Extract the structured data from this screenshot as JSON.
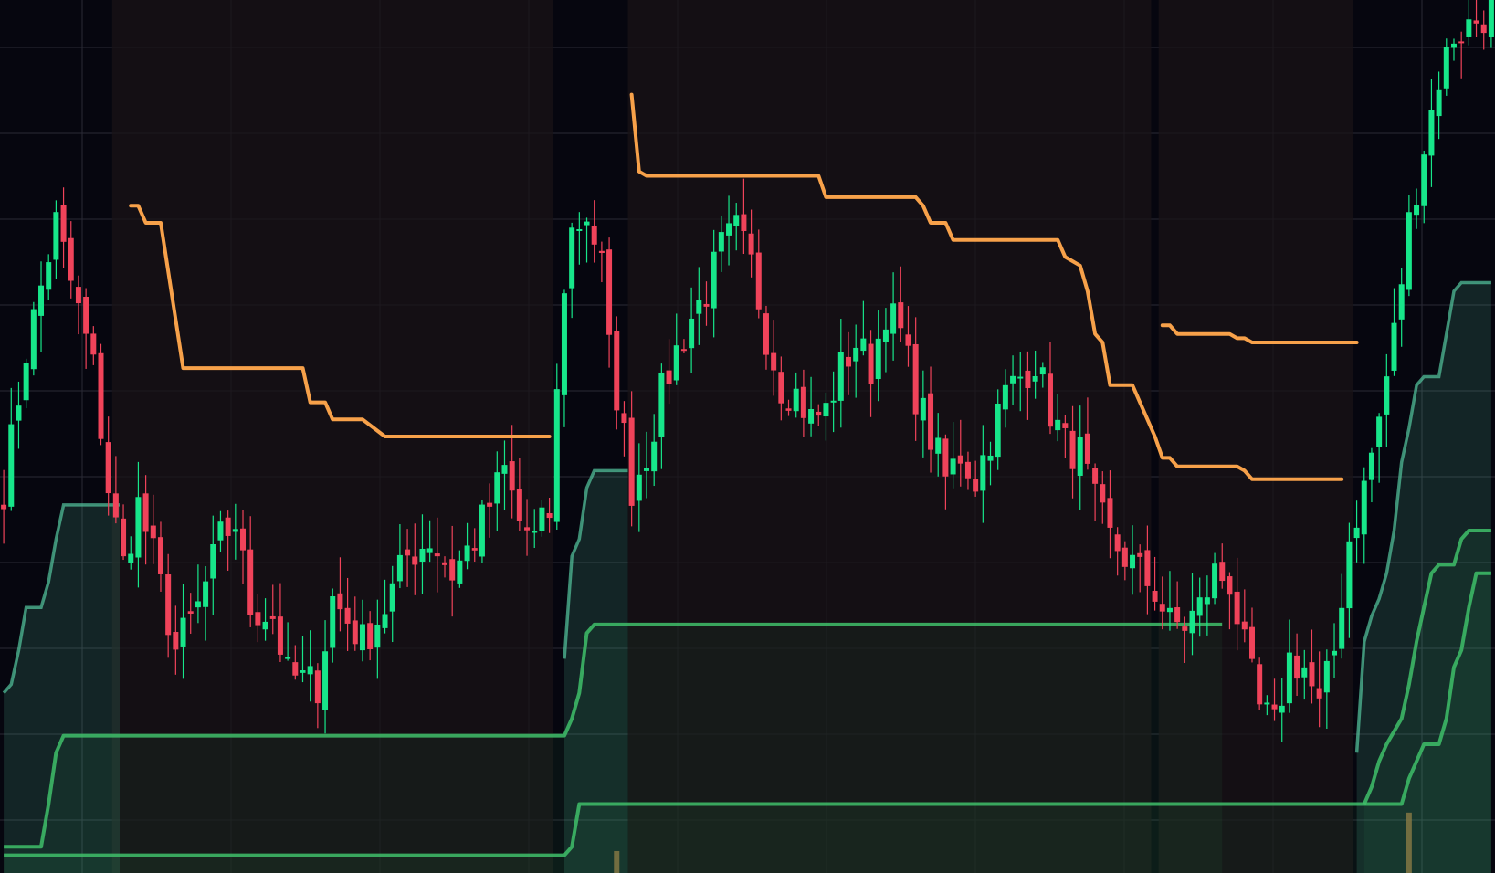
{
  "chart_data": {
    "type": "candlestick",
    "ylim": [
      0,
      100
    ],
    "x_count": 200,
    "grid": true,
    "colors": {
      "background": "#06060f",
      "grid": "#2a2a36",
      "up_candle": "#17e68a",
      "down_candle": "#f0435a",
      "resistance_line": "#f7a14a",
      "support_line": "#3fbf6a",
      "support_band": "#55c8a0",
      "zone_shade": "#1a1317",
      "volume_tick": "#8a7a45"
    },
    "candle_waypoints": [
      [
        0,
        44
      ],
      [
        3,
        60
      ],
      [
        7,
        75
      ],
      [
        9,
        68
      ],
      [
        12,
        58
      ],
      [
        14,
        44
      ],
      [
        16,
        35
      ],
      [
        18,
        42
      ],
      [
        20,
        36
      ],
      [
        23,
        25
      ],
      [
        26,
        30
      ],
      [
        29,
        38
      ],
      [
        31,
        40
      ],
      [
        33,
        30
      ],
      [
        36,
        29
      ],
      [
        38,
        22
      ],
      [
        42,
        21
      ],
      [
        44,
        31
      ],
      [
        48,
        26
      ],
      [
        51,
        30
      ],
      [
        54,
        36
      ],
      [
        57,
        38
      ],
      [
        60,
        34
      ],
      [
        63,
        38
      ],
      [
        65,
        42
      ],
      [
        67,
        46
      ],
      [
        69,
        40
      ],
      [
        71,
        38
      ],
      [
        73,
        41
      ],
      [
        75,
        68
      ],
      [
        76,
        74
      ],
      [
        78,
        76
      ],
      [
        80,
        70
      ],
      [
        81,
        60
      ],
      [
        83,
        50
      ],
      [
        84,
        44
      ],
      [
        86,
        48
      ],
      [
        88,
        55
      ],
      [
        90,
        60
      ],
      [
        92,
        64
      ],
      [
        94,
        67
      ],
      [
        96,
        72
      ],
      [
        98,
        74
      ],
      [
        100,
        70
      ],
      [
        102,
        62
      ],
      [
        104,
        56
      ],
      [
        106,
        55
      ],
      [
        108,
        52
      ],
      [
        110,
        53
      ],
      [
        112,
        58
      ],
      [
        114,
        61
      ],
      [
        116,
        58
      ],
      [
        118,
        65
      ],
      [
        120,
        62
      ],
      [
        122,
        55
      ],
      [
        124,
        50
      ],
      [
        126,
        45
      ],
      [
        128,
        48
      ],
      [
        130,
        45
      ],
      [
        132,
        50
      ],
      [
        134,
        55
      ],
      [
        136,
        57
      ],
      [
        138,
        59
      ],
      [
        140,
        53
      ],
      [
        142,
        49
      ],
      [
        144,
        48
      ],
      [
        146,
        42
      ],
      [
        148,
        38
      ],
      [
        150,
        36
      ],
      [
        152,
        34
      ],
      [
        154,
        32
      ],
      [
        156,
        28
      ],
      [
        158,
        28
      ],
      [
        160,
        30
      ],
      [
        162,
        34
      ],
      [
        164,
        33
      ],
      [
        166,
        25
      ],
      [
        168,
        18
      ],
      [
        170,
        16
      ],
      [
        172,
        24
      ],
      [
        174,
        23
      ],
      [
        176,
        18
      ],
      [
        178,
        25
      ],
      [
        180,
        38
      ],
      [
        182,
        44
      ],
      [
        184,
        52
      ],
      [
        186,
        62
      ],
      [
        188,
        75
      ],
      [
        190,
        84
      ],
      [
        192,
        92
      ],
      [
        194,
        97
      ],
      [
        196,
        98
      ],
      [
        199,
        100
      ]
    ],
    "resistance_segments": [
      [
        [
          17,
          77
        ],
        [
          18,
          77
        ],
        [
          19,
          75
        ],
        [
          21,
          75
        ],
        [
          24,
          58
        ],
        [
          40,
          58
        ],
        [
          41,
          54
        ],
        [
          43,
          54
        ],
        [
          44,
          52
        ],
        [
          48,
          52
        ],
        [
          51,
          50
        ],
        [
          73,
          50
        ]
      ],
      [
        [
          84,
          90
        ],
        [
          85,
          81
        ],
        [
          86,
          80.5
        ],
        [
          109,
          80.5
        ],
        [
          110,
          78
        ],
        [
          122,
          78
        ],
        [
          123,
          77
        ],
        [
          124,
          75
        ],
        [
          126,
          75
        ],
        [
          127,
          73
        ],
        [
          141,
          73
        ],
        [
          142,
          71
        ],
        [
          144,
          70
        ],
        [
          145,
          67
        ],
        [
          146,
          62
        ],
        [
          147,
          61
        ],
        [
          148,
          56
        ],
        [
          151,
          56
        ],
        [
          152,
          54
        ],
        [
          154,
          50
        ],
        [
          155,
          47.5
        ],
        [
          156,
          47.5
        ],
        [
          157,
          46.5
        ],
        [
          165,
          46.5
        ],
        [
          166,
          46
        ],
        [
          167,
          45
        ],
        [
          168,
          45
        ],
        [
          169,
          45
        ],
        [
          179,
          45
        ]
      ],
      [
        [
          155,
          63
        ],
        [
          156,
          63
        ],
        [
          157,
          62
        ],
        [
          164,
          62
        ],
        [
          165,
          61.5
        ],
        [
          166,
          61.5
        ],
        [
          167,
          61
        ],
        [
          181,
          61
        ]
      ]
    ],
    "support_band_segments": [
      [
        [
          0,
          20
        ],
        [
          1,
          21
        ],
        [
          2,
          25
        ],
        [
          3,
          30
        ],
        [
          5,
          30
        ],
        [
          6,
          33
        ],
        [
          7,
          38
        ],
        [
          8,
          42
        ],
        [
          9,
          42
        ],
        [
          15,
          42
        ],
        [
          15.5,
          42
        ]
      ],
      [
        [
          75,
          24
        ],
        [
          76,
          36
        ],
        [
          77,
          38
        ],
        [
          78,
          44
        ],
        [
          79,
          46
        ],
        [
          83,
          46
        ],
        [
          83.5,
          46
        ]
      ],
      [
        [
          181,
          13
        ],
        [
          182,
          26
        ],
        [
          183,
          29
        ],
        [
          184,
          31
        ],
        [
          185,
          34
        ],
        [
          186,
          39
        ],
        [
          187,
          47
        ],
        [
          188,
          51
        ],
        [
          189,
          56
        ],
        [
          190,
          57
        ],
        [
          192,
          57
        ],
        [
          193,
          62
        ],
        [
          194,
          67
        ],
        [
          195,
          68
        ],
        [
          197,
          68
        ],
        [
          199,
          68
        ]
      ]
    ],
    "support_line_segments": [
      [
        [
          0,
          2
        ],
        [
          5,
          2
        ],
        [
          6,
          7
        ],
        [
          7,
          13
        ],
        [
          8,
          15
        ],
        [
          9,
          15
        ],
        [
          74,
          15
        ],
        [
          75,
          15
        ],
        [
          76,
          17
        ],
        [
          77,
          20
        ],
        [
          78,
          27
        ],
        [
          79,
          28
        ],
        [
          155,
          28
        ],
        [
          160,
          28
        ],
        [
          163,
          28
        ]
      ],
      [
        [
          0,
          1
        ],
        [
          75,
          1
        ],
        [
          76,
          2
        ],
        [
          77,
          7
        ],
        [
          78,
          7
        ],
        [
          180,
          7
        ],
        [
          185,
          7
        ],
        [
          187,
          7
        ],
        [
          188,
          10
        ],
        [
          189,
          12
        ],
        [
          190,
          14
        ],
        [
          192,
          14
        ],
        [
          193,
          17
        ],
        [
          194,
          23
        ],
        [
          195,
          25
        ],
        [
          196,
          30
        ],
        [
          197,
          34
        ],
        [
          199,
          34
        ]
      ],
      [
        [
          182,
          7
        ],
        [
          183,
          9
        ],
        [
          184,
          12
        ],
        [
          185,
          14
        ],
        [
          187,
          17
        ],
        [
          188,
          21
        ],
        [
          189,
          26
        ],
        [
          190,
          30
        ],
        [
          191,
          34
        ],
        [
          192,
          35
        ],
        [
          194,
          35
        ],
        [
          195,
          38
        ],
        [
          196,
          39
        ],
        [
          199,
          39
        ]
      ]
    ],
    "zones": [
      [
        15,
        74
      ],
      [
        84,
        154
      ],
      [
        155,
        181
      ]
    ],
    "volume_ticks": [
      [
        82,
        1.5
      ],
      [
        188,
        6
      ]
    ]
  }
}
